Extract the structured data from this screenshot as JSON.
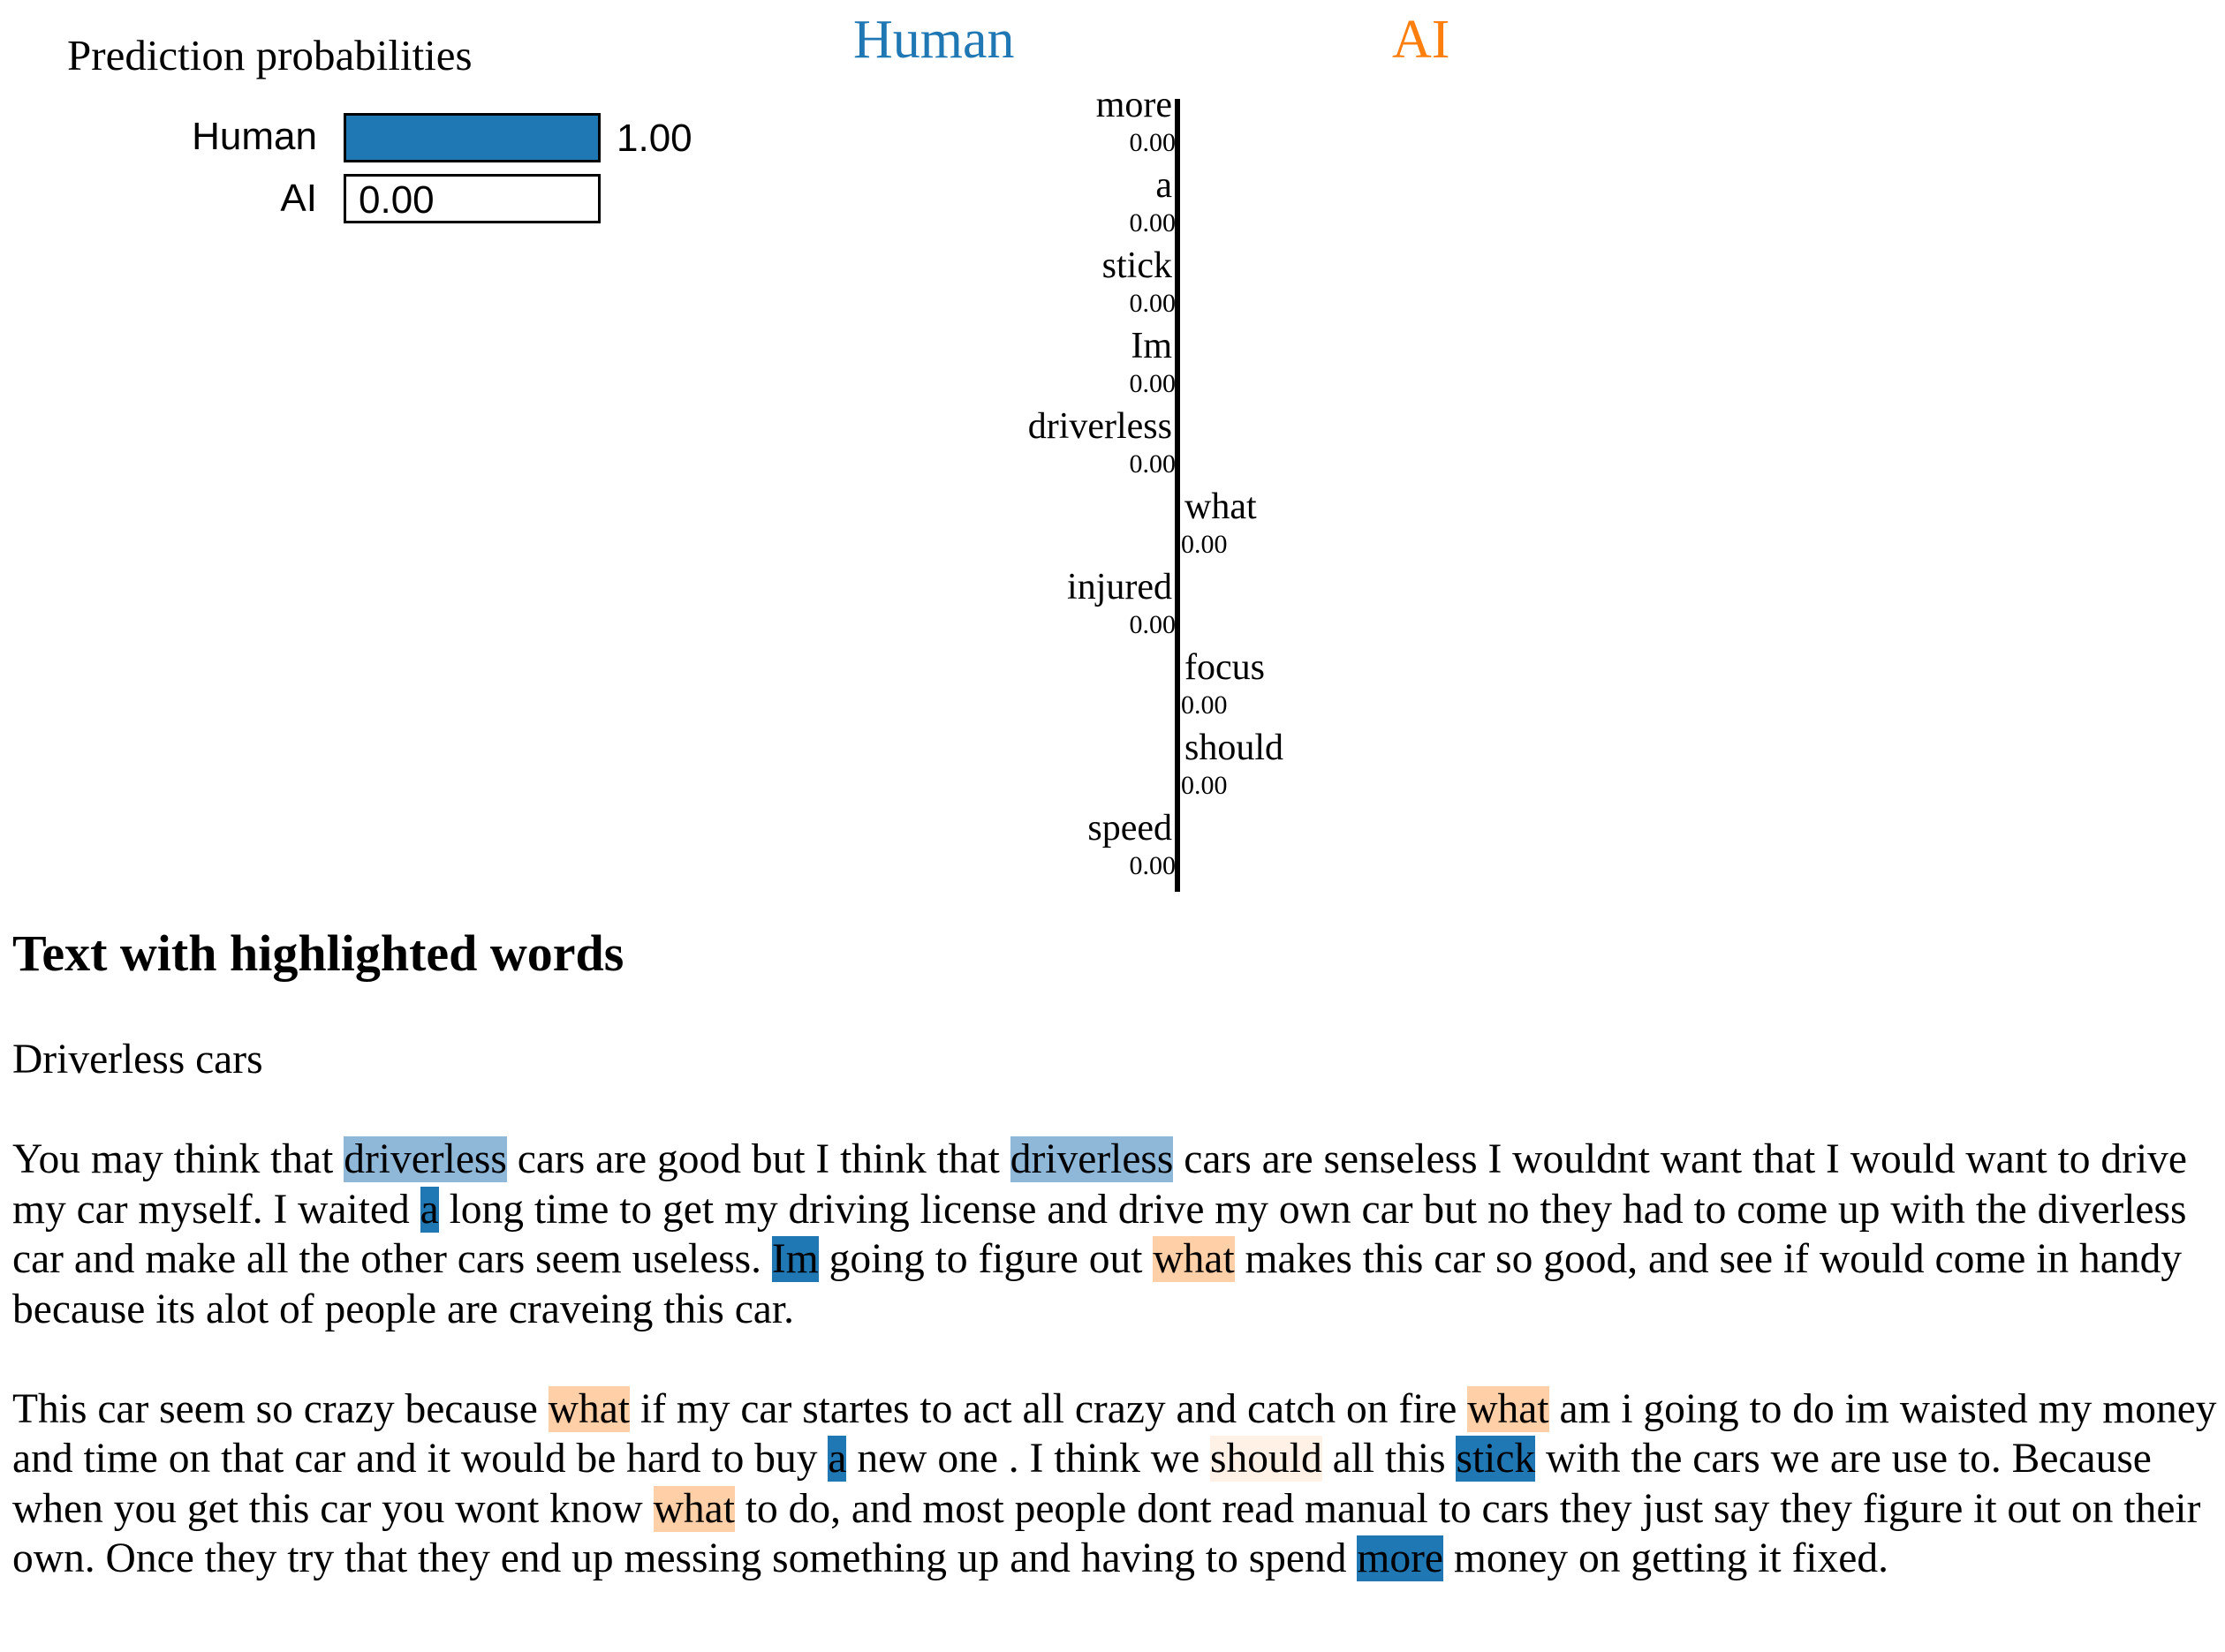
{
  "prediction": {
    "title": "Prediction probabilities",
    "classes": [
      {
        "name": "Human",
        "prob": 1.0,
        "prob_label": "1.00",
        "color": "#1f77b4"
      },
      {
        "name": "AI",
        "prob": 0.0,
        "prob_label": "0.00",
        "color": "#ff7f0e"
      }
    ]
  },
  "header": {
    "left_class": "Human",
    "right_class": "AI",
    "left_color": "#1f77b4",
    "right_color": "#ff7f0e"
  },
  "chart_data": {
    "type": "bar",
    "orientation": "horizontal",
    "categories": [
      "more",
      "a",
      "stick",
      "Im",
      "driverless",
      "what",
      "injured",
      "focus",
      "should",
      "speed"
    ],
    "side": [
      "Human",
      "Human",
      "Human",
      "Human",
      "Human",
      "AI",
      "Human",
      "AI",
      "AI",
      "Human"
    ],
    "value_labels": [
      "0.00",
      "0.00",
      "0.00",
      "0.00",
      "0.00",
      "0.00",
      "0.00",
      "0.00",
      "0.00",
      "0.00"
    ],
    "values": [
      0.0,
      0.0,
      0.0,
      0.0,
      0.0,
      0.0,
      0.0,
      0.0,
      0.0,
      0.0
    ]
  },
  "highlight": {
    "title": "Text with highlighted words",
    "paragraphs": [
      [
        {
          "t": "Driverless cars"
        }
      ],
      [
        {
          "t": "You may think that "
        },
        {
          "t": "driverless",
          "bg": "#8fb7d8"
        },
        {
          "t": " cars are good but I think that "
        },
        {
          "t": "driverless",
          "bg": "#8fb7d8"
        },
        {
          "t": " cars are senseless I wouldnt want that I would want to drive my car myself. I waited "
        },
        {
          "t": "a",
          "bg": "#1f77b4"
        },
        {
          "t": " long time to get my driving license and drive my own car but no they had to come up with the diverless car and make all the other cars seem useless. "
        },
        {
          "t": "Im",
          "bg": "#1f77b4"
        },
        {
          "t": " going to figure out "
        },
        {
          "t": "what",
          "bg": "#ffd0a8"
        },
        {
          "t": " makes this car so good, and see if would come in handy because its alot of people are craveing this car."
        }
      ],
      [
        {
          "t": "This car seem so crazy because "
        },
        {
          "t": "what",
          "bg": "#ffd0a8"
        },
        {
          "t": " if my car startes to act all crazy and catch on fire "
        },
        {
          "t": "what",
          "bg": "#ffd0a8"
        },
        {
          "t": " am i going to do im waisted my money and time on that car and it would be hard to buy "
        },
        {
          "t": "a",
          "bg": "#1f77b4"
        },
        {
          "t": " new one . I think we "
        },
        {
          "t": "should",
          "bg": "#fff1e6"
        },
        {
          "t": " all this "
        },
        {
          "t": "stick",
          "bg": "#1f77b4"
        },
        {
          "t": " with the cars we are use to. Because when you get this car you wont know "
        },
        {
          "t": "what",
          "bg": "#ffd0a8"
        },
        {
          "t": " to do, and most people dont read manual to cars they just say they figure it out on their own. Once they try that they end up messing something up and having to spend "
        },
        {
          "t": "more",
          "bg": "#1f77b4"
        },
        {
          "t": " money on getting it fixed."
        }
      ]
    ]
  }
}
